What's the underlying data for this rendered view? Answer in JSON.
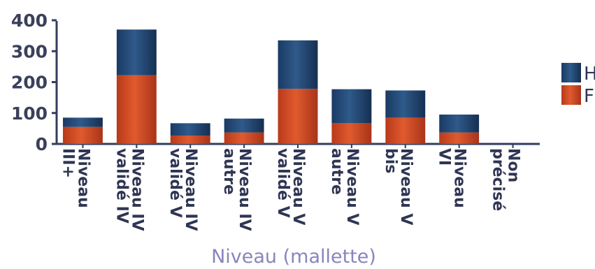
{
  "chart_data": {
    "type": "bar",
    "stacked": true,
    "title": "",
    "xlabel": "Niveau (mallette)",
    "ylabel": "",
    "ylim": [
      0,
      400
    ],
    "yticks": [
      0,
      100,
      200,
      300,
      400
    ],
    "grid": false,
    "legend_position": "right",
    "categories": [
      [
        "Niveau",
        "III+"
      ],
      [
        "Niveau IV",
        "validé IV"
      ],
      [
        "Niveau IV",
        "validé V"
      ],
      [
        "Niveau IV",
        "autre"
      ],
      [
        "Niveau V",
        "validé V"
      ],
      [
        "Niveau V",
        "autre"
      ],
      [
        "Niveau V",
        "bis"
      ],
      [
        "Niveau",
        "VI"
      ],
      [
        "Non",
        "précisé"
      ]
    ],
    "series": [
      {
        "name": "F",
        "color": "#cc4422",
        "values": [
          55,
          222,
          27,
          37,
          178,
          67,
          85,
          37,
          0
        ]
      },
      {
        "name": "H",
        "color": "#1f4470",
        "values": [
          30,
          148,
          40,
          45,
          157,
          110,
          88,
          58,
          0
        ]
      }
    ]
  }
}
